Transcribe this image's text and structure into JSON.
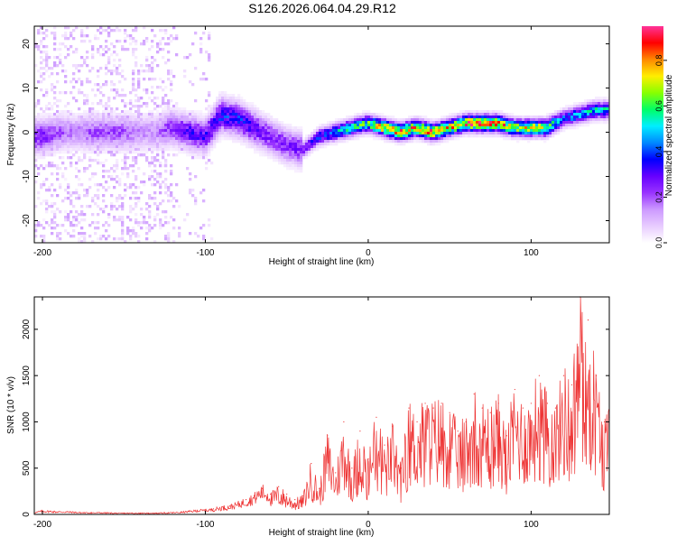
{
  "title": "S126.2026.064.04.29.R12",
  "colors": {
    "series": "#ee3333",
    "axis": "#000000",
    "colormap": [
      "#ffffff",
      "#e8ccff",
      "#cc99ff",
      "#9933ff",
      "#6600ff",
      "#0000ff",
      "#0088ff",
      "#00eeff",
      "#00ff66",
      "#88ff00",
      "#ffee00",
      "#ff8800",
      "#ff0000",
      "#ff3399"
    ]
  },
  "chart_data": [
    {
      "type": "heatmap",
      "title": "",
      "xlabel": "Height of straight line (km)",
      "ylabel": "Frequency (Hz)",
      "xlim": [
        -205,
        148
      ],
      "ylim": [
        -25,
        24
      ],
      "xticks": [
        -200,
        -100,
        0,
        100
      ],
      "xtick_labels": [
        "-200",
        "-100",
        "0",
        "100"
      ],
      "yticks": [
        20,
        10,
        0,
        -10,
        -20
      ],
      "ytick_labels": [
        "20",
        "10",
        "0",
        "-10",
        "-20"
      ],
      "grid": false,
      "ridge": {
        "x": [
          -200,
          -190,
          -180,
          -170,
          -160,
          -150,
          -140,
          -130,
          -120,
          -110,
          -100,
          -90,
          -80,
          -70,
          -60,
          -50,
          -40,
          -30,
          -20,
          -10,
          0,
          10,
          20,
          30,
          40,
          50,
          60,
          70,
          80,
          90,
          100,
          110,
          120,
          130,
          140,
          148
        ],
        "freq": [
          -1,
          0,
          0,
          0,
          0,
          0,
          0,
          0,
          1,
          0,
          -1,
          4,
          3,
          1,
          -1,
          -3,
          -4,
          -1,
          0,
          1,
          2,
          1,
          0,
          1,
          0,
          1,
          2,
          2,
          2,
          1,
          1,
          1,
          3,
          4,
          5,
          5
        ],
        "amplitude": [
          0.25,
          0.2,
          0.15,
          0.2,
          0.2,
          0.2,
          0.15,
          0.15,
          0.25,
          0.3,
          0.3,
          0.35,
          0.35,
          0.3,
          0.25,
          0.25,
          0.25,
          0.35,
          0.45,
          0.55,
          0.6,
          0.75,
          0.8,
          0.75,
          0.8,
          0.7,
          0.8,
          0.85,
          0.8,
          0.65,
          0.7,
          0.65,
          0.4,
          0.45,
          0.5,
          0.5
        ]
      },
      "colorbar": {
        "label": "Normalized spectral amplitude",
        "range": [
          0,
          0.95
        ],
        "ticks": [
          0.0,
          0.2,
          0.4,
          0.6,
          0.8
        ],
        "tick_labels": [
          "0.0",
          "0.2",
          "0.4",
          "0.6",
          "0.8"
        ]
      }
    },
    {
      "type": "line",
      "title": "",
      "xlabel": "Height of straight line (km)",
      "ylabel": "SNR (10 * v/v)",
      "xlim": [
        -205,
        148
      ],
      "ylim": [
        0,
        2350
      ],
      "xticks": [
        -200,
        -100,
        0,
        100
      ],
      "xtick_labels": [
        "-200",
        "-100",
        "0",
        "100"
      ],
      "yticks": [
        0,
        500,
        1000,
        1500,
        2000
      ],
      "ytick_labels": [
        "0",
        "500",
        "1000",
        "1500",
        "2000"
      ],
      "grid": false,
      "series": [
        {
          "name": "SNR",
          "x": [
            -205,
            -200,
            -195,
            -190,
            -185,
            -180,
            -175,
            -170,
            -165,
            -160,
            -155,
            -150,
            -145,
            -140,
            -135,
            -130,
            -125,
            -120,
            -115,
            -110,
            -105,
            -100,
            -95,
            -90,
            -85,
            -80,
            -75,
            -70,
            -65,
            -60,
            -55,
            -50,
            -45,
            -40,
            -35,
            -30,
            -25,
            -20,
            -15,
            -10,
            -5,
            0,
            5,
            10,
            15,
            20,
            25,
            30,
            35,
            40,
            45,
            50,
            55,
            60,
            65,
            70,
            75,
            80,
            85,
            90,
            95,
            100,
            105,
            110,
            115,
            120,
            125,
            130,
            135,
            140,
            145,
            148
          ],
          "values": [
            20,
            40,
            35,
            30,
            30,
            25,
            20,
            20,
            20,
            18,
            15,
            15,
            15,
            15,
            15,
            15,
            18,
            20,
            25,
            35,
            45,
            50,
            60,
            80,
            90,
            120,
            160,
            200,
            280,
            220,
            300,
            220,
            160,
            200,
            550,
            280,
            850,
            450,
            1000,
            500,
            900,
            600,
            1050,
            750,
            950,
            500,
            1150,
            1000,
            1200,
            1150,
            1200,
            1100,
            900,
            1000,
            1300,
            1150,
            1100,
            1200,
            850,
            1350,
            1150,
            1200,
            1500,
            1200,
            1150,
            1500,
            1400,
            2350,
            2100,
            1500,
            1000,
            1050
          ]
        }
      ]
    }
  ]
}
